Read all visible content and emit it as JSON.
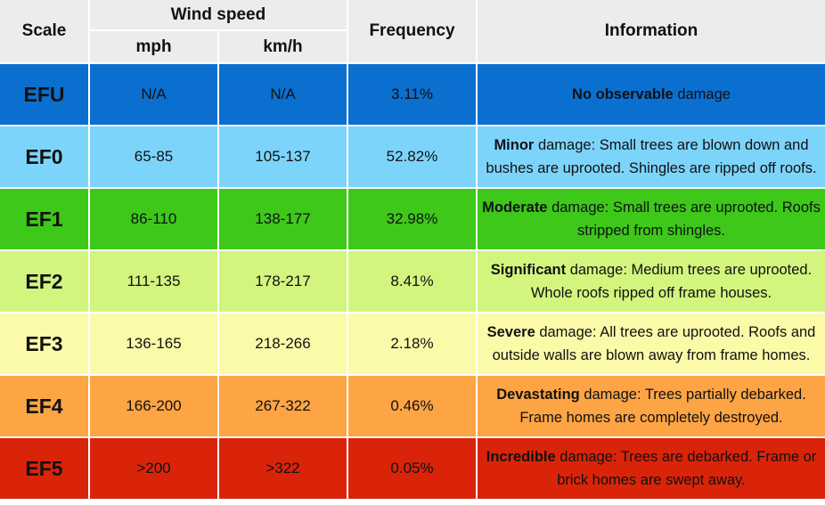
{
  "header": {
    "scale": "Scale",
    "wind_speed": "Wind speed",
    "mph": "mph",
    "kmh": "km/h",
    "frequency": "Frequency",
    "information": "Information"
  },
  "rows": [
    {
      "scale": "EFU",
      "mph": "N/A",
      "kmh": "N/A",
      "frequency": "3.11%",
      "info_bold": "No observable",
      "info_rest": " damage",
      "color": "#0b6fcf"
    },
    {
      "scale": "EF0",
      "mph": "65-85",
      "kmh": "105-137",
      "frequency": "52.82%",
      "info_bold": "Minor",
      "info_rest": " damage: Small trees are blown down and bushes are uprooted. Shingles are ripped off roofs.",
      "color": "#7dd4fb"
    },
    {
      "scale": "EF1",
      "mph": "86-110",
      "kmh": "138-177",
      "frequency": "32.98%",
      "info_bold": "Moderate",
      "info_rest": " damage: Small trees are uprooted. Roofs stripped from shingles.",
      "color": "#3dc81a"
    },
    {
      "scale": "EF2",
      "mph": "111-135",
      "kmh": "178-217",
      "frequency": "8.41%",
      "info_bold": "Significant",
      "info_rest": " damage: Medium trees are uprooted. Whole roofs ripped off frame houses.",
      "color": "#d2f57e"
    },
    {
      "scale": "EF3",
      "mph": "136-165",
      "kmh": "218-266",
      "frequency": "2.18%",
      "info_bold": "Severe",
      "info_rest": " damage: All trees are uprooted. Roofs and outside walls are blown away from frame homes.",
      "color": "#fbfaa9"
    },
    {
      "scale": "EF4",
      "mph": "166-200",
      "kmh": "267-322",
      "frequency": "0.46%",
      "info_bold": "Devastating",
      "info_rest": " damage: Trees partially debarked. Frame homes are completely destroyed.",
      "color": "#fda444"
    },
    {
      "scale": "EF5",
      "mph": ">200",
      "kmh": ">322",
      "frequency": "0.05%",
      "info_bold": "Incredible",
      "info_rest": " damage: Trees are debarked. Frame or brick homes are swept away.",
      "color": "#d9240a"
    }
  ]
}
